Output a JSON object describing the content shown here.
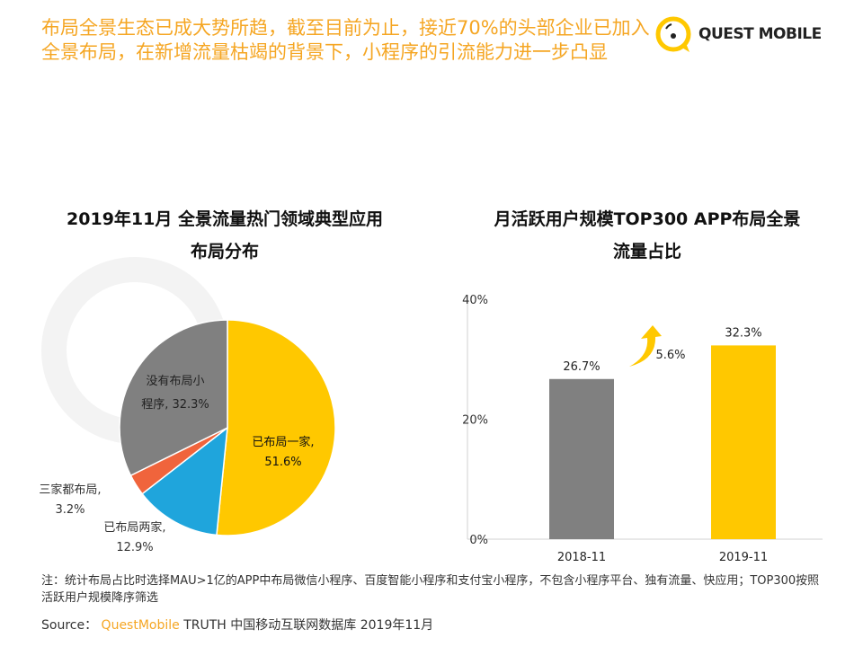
{
  "header": {
    "title": "布局全景生态已成大势所趋，截至目前为止，接近70%的头部企业已加入全景布局，在新增流量枯竭的背景下，小程序的引流能力进一步凸显",
    "logo_text": "QUEST MOBILE"
  },
  "watermark": "QUEST MOBILE",
  "chart_data": [
    {
      "type": "pie",
      "title": "2019年11月 全景流量热门领域典型应用布局分布",
      "title_lines": [
        "2019年11月 全景流量热门领域典型应用",
        "布局分布"
      ],
      "slices": [
        {
          "label": "已布局一家,",
          "value_label": "51.6%",
          "value": 51.6,
          "color": "#ffc800"
        },
        {
          "label": "已布局两家,",
          "value_label": "12.9%",
          "value": 12.9,
          "color": "#1fa5dc"
        },
        {
          "label": "三家都布局,",
          "value_label": "3.2%",
          "value": 3.2,
          "color": "#f0643c"
        },
        {
          "label": "没有布局小",
          "label2": "程序,",
          "value_label": "32.3%",
          "value": 32.3,
          "color": "#808080"
        }
      ]
    },
    {
      "type": "bar",
      "title": "月活跃用户规模TOP300 APP布局全景流量占比",
      "title_lines": [
        "月活跃用户规模TOP300 APP布局全景",
        "流量占比"
      ],
      "categories": [
        "2018-11",
        "2019-11"
      ],
      "values": [
        26.7,
        32.3
      ],
      "value_labels": [
        "26.7%",
        "32.3%"
      ],
      "colors": [
        "#808080",
        "#ffc800"
      ],
      "ylim": [
        0,
        40
      ],
      "yticks": [
        0,
        20,
        40
      ],
      "ytick_labels": [
        "0%",
        "20%",
        "40%"
      ],
      "annotation": "5.6%",
      "annotation_color": "#ffc800"
    }
  ],
  "footer": {
    "note": "注：统计布局占比时选择MAU>1亿的APP中布局微信小程序、百度智能小程序和支付宝小程序，不包含小程序平台、独有流量、快应用；TOP300按照活跃用户规模降序筛选",
    "source_label": "Source：",
    "source_brand": "QuestMobile",
    "source_rest": " TRUTH 中国移动互联网数据库 2019年11月"
  }
}
